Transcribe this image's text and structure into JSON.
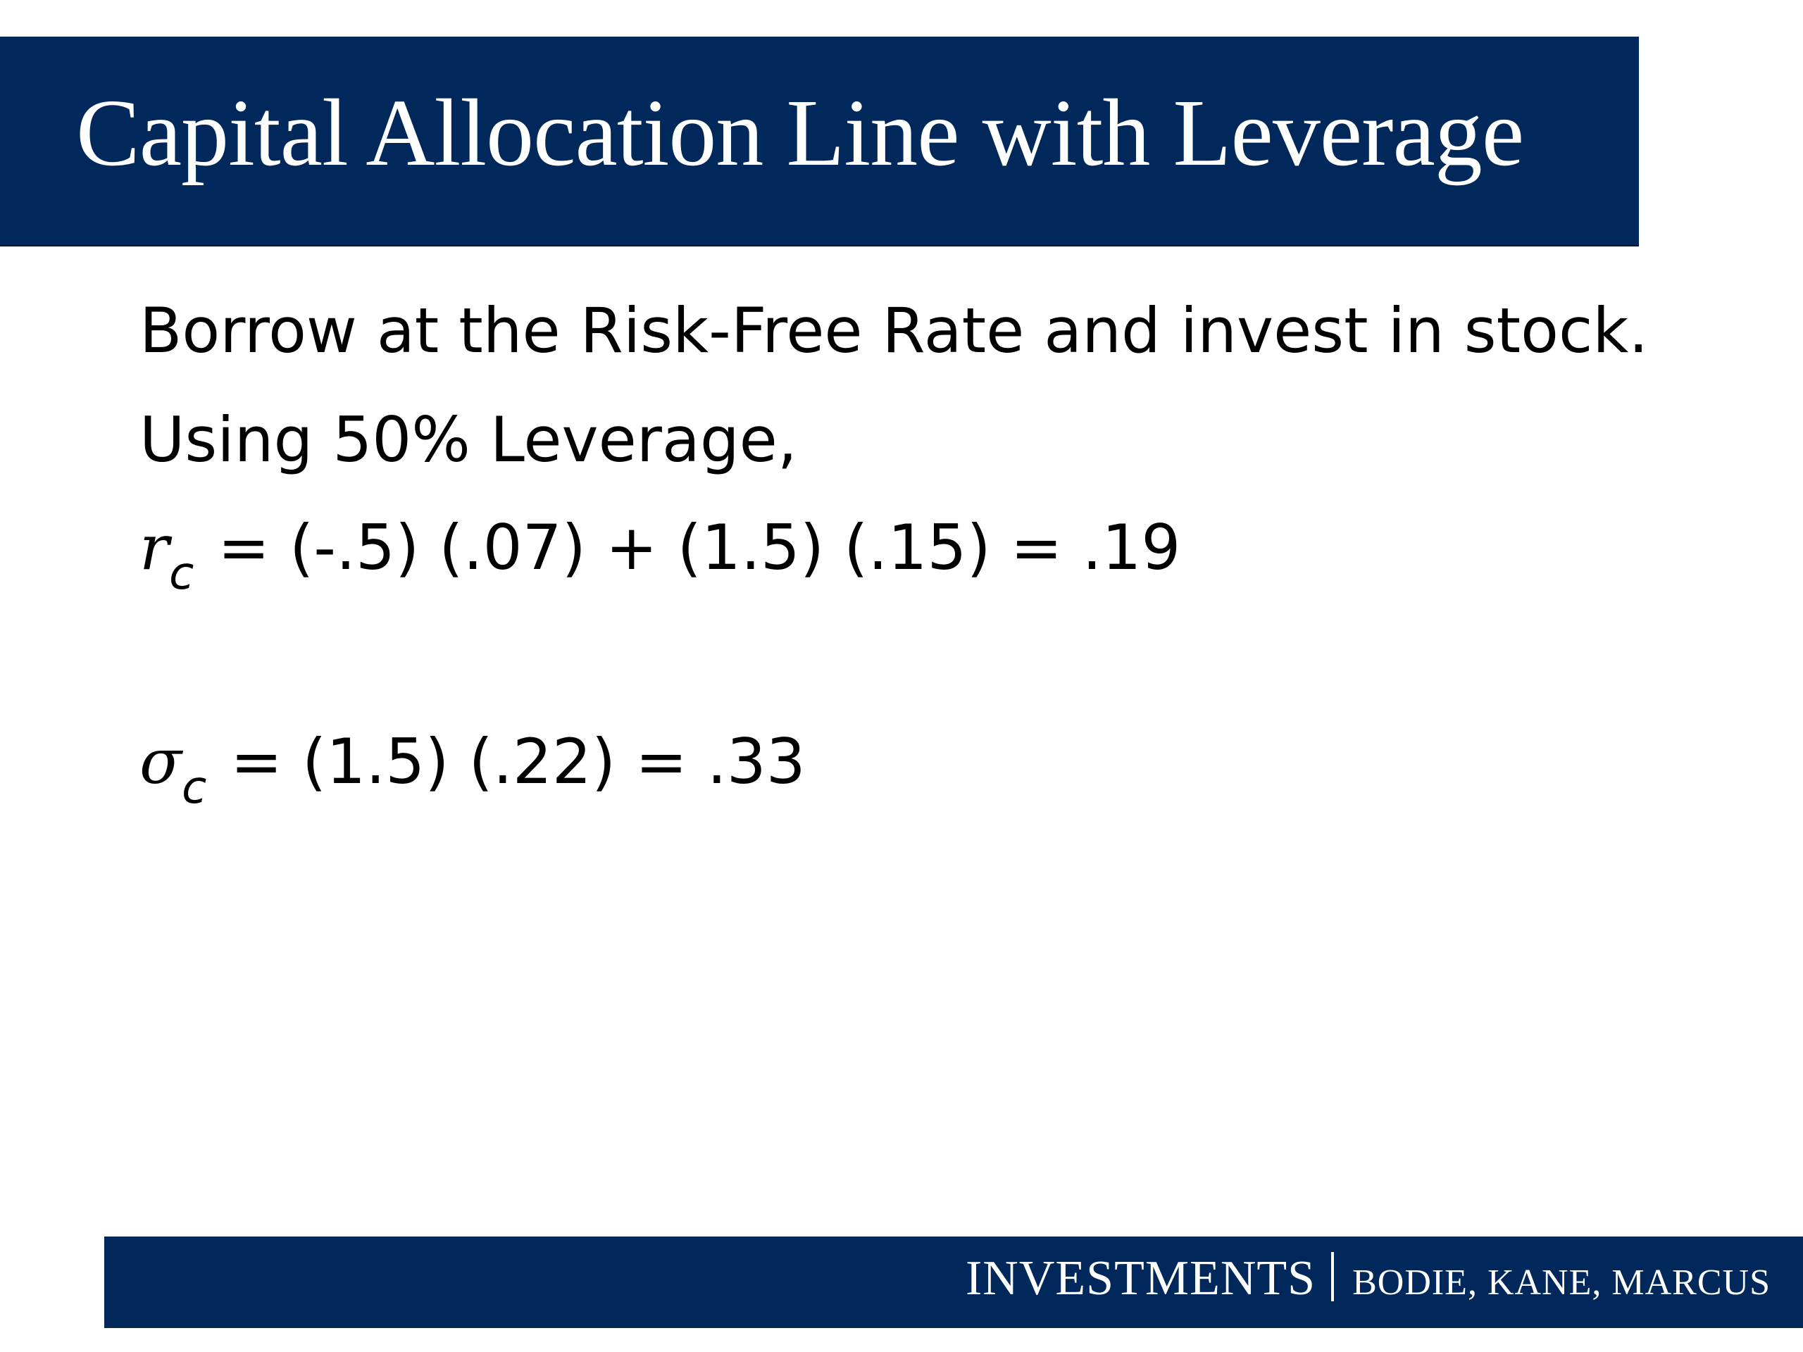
{
  "slide": {
    "title": "Capital Allocation Line with Leverage",
    "lines": [
      "Borrow at the Risk-Free Rate and invest in stock.",
      "Using 50% Leverage,"
    ],
    "equation_rc": {
      "symbol": "r",
      "subscript": "c",
      "expression": " = (-.5) (.07) + (1.5) (.15) = .19"
    },
    "equation_sigma": {
      "symbol": "σ",
      "subscript": "c",
      "expression": " = (1.5) (.22) = .33"
    }
  },
  "footer": {
    "book": "INVESTMENTS",
    "authors": "BODIE, KANE, MARCUS"
  },
  "colors": {
    "bar": "#00285a",
    "bar_text": "#ffffff",
    "body_text": "#000000"
  }
}
